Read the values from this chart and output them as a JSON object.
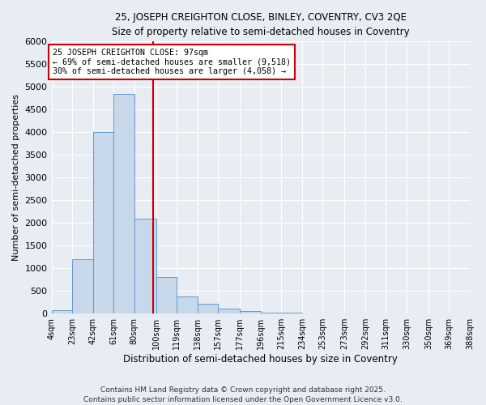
{
  "title1": "25, JOSEPH CREIGHTON CLOSE, BINLEY, COVENTRY, CV3 2QE",
  "title2": "Size of property relative to semi-detached houses in Coventry",
  "xlabel": "Distribution of semi-detached houses by size in Coventry",
  "ylabel": "Number of semi-detached properties",
  "property_label": "25 JOSEPH CREIGHTON CLOSE: 97sqm",
  "smaller_pct": 69,
  "smaller_count": 9518,
  "larger_pct": 30,
  "larger_count": 4058,
  "bin_edges": [
    4,
    23,
    42,
    61,
    80,
    100,
    119,
    138,
    157,
    177,
    196,
    215,
    234,
    253,
    273,
    292,
    311,
    330,
    350,
    369,
    388
  ],
  "bin_values": [
    75,
    1200,
    4000,
    4850,
    2100,
    800,
    380,
    210,
    110,
    55,
    30,
    15,
    10,
    5,
    5,
    3,
    2,
    2,
    1,
    2
  ],
  "bar_color": "#c8d8eb",
  "bar_edge_color": "#6699cc",
  "vline_color": "#cc0000",
  "vline_x": 97,
  "annotation_box_color": "#cc0000",
  "background_color": "#e8edf4",
  "grid_color": "#ffffff",
  "footer1": "Contains HM Land Registry data © Crown copyright and database right 2025.",
  "footer2": "Contains public sector information licensed under the Open Government Licence v3.0.",
  "ylim": [
    0,
    6000
  ],
  "yticks": [
    0,
    500,
    1000,
    1500,
    2000,
    2500,
    3000,
    3500,
    4000,
    4500,
    5000,
    5500,
    6000
  ]
}
